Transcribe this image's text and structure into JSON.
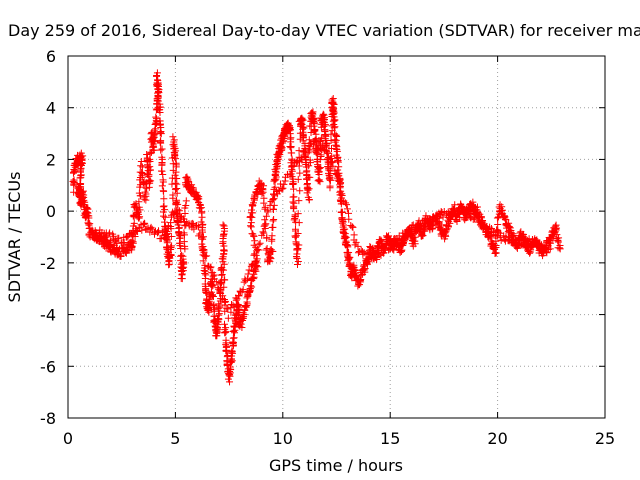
{
  "chart_data": {
    "type": "scatter",
    "title": "Day 259 of 2016, Sidereal Day-to-day VTEC variation (SDTVAR) for receiver ma",
    "xlabel": "GPS time / hours",
    "ylabel": "SDTVAR / TECUs",
    "xlim": [
      0,
      25
    ],
    "ylim": [
      -8,
      6
    ],
    "xticks": [
      0,
      5,
      10,
      15,
      20,
      25
    ],
    "yticks": [
      -8,
      -6,
      -4,
      -2,
      0,
      2,
      4,
      6
    ],
    "grid": true,
    "marker": "+",
    "color": "#ff0000",
    "series": [
      {
        "trace": [
          [
            0.25,
            0.8
          ],
          [
            0.3,
            1.8
          ],
          [
            0.45,
            2.0
          ],
          [
            0.65,
            2.1
          ],
          [
            0.6,
            1.4
          ],
          [
            0.55,
            0.6
          ],
          [
            0.5,
            0.9
          ],
          [
            0.6,
            0.3
          ],
          [
            0.7,
            0.6
          ],
          [
            0.8,
            -0.2
          ],
          [
            0.9,
            0.1
          ],
          [
            1.0,
            -0.8
          ],
          [
            1.2,
            -0.9
          ],
          [
            1.4,
            -1.0
          ],
          [
            1.6,
            -1.1
          ],
          [
            1.8,
            -1.3
          ],
          [
            2.0,
            -1.4
          ],
          [
            2.2,
            -1.5
          ],
          [
            2.5,
            -1.6
          ],
          [
            2.8,
            -1.4
          ],
          [
            3.0,
            -1.3
          ],
          [
            3.1,
            0.2
          ],
          [
            3.3,
            -0.3
          ],
          [
            3.4,
            1.8
          ],
          [
            3.6,
            0.5
          ],
          [
            3.7,
            2.2
          ],
          [
            3.8,
            1.0
          ],
          [
            3.9,
            3.0
          ],
          [
            4.0,
            2.5
          ],
          [
            4.1,
            3.5
          ],
          [
            4.2,
            4.6
          ],
          [
            4.15,
            5.2
          ],
          [
            4.25,
            4.0
          ],
          [
            4.3,
            3.0
          ],
          [
            4.4,
            1.5
          ],
          [
            4.5,
            -0.5
          ],
          [
            4.6,
            -1.2
          ],
          [
            4.7,
            -2.0
          ],
          [
            4.8,
            -1.5
          ],
          [
            4.9,
            2.8
          ],
          [
            5.0,
            2.0
          ],
          [
            5.05,
            0.5
          ],
          [
            5.1,
            -0.3
          ],
          [
            5.2,
            -1.0
          ],
          [
            5.3,
            -2.5
          ],
          [
            5.4,
            -1.8
          ],
          [
            5.5,
            1.2
          ],
          [
            5.6,
            1.0
          ],
          [
            5.8,
            0.8
          ],
          [
            6.0,
            0.6
          ],
          [
            6.2,
            0.0
          ],
          [
            6.3,
            -1.5
          ],
          [
            6.4,
            -3.0
          ],
          [
            6.5,
            -3.8
          ],
          [
            6.6,
            -3.5
          ],
          [
            6.7,
            -2.5
          ],
          [
            6.8,
            -4.0
          ],
          [
            6.9,
            -4.8
          ],
          [
            7.0,
            -4.2
          ],
          [
            7.1,
            -3.0
          ],
          [
            7.2,
            -2.0
          ],
          [
            7.25,
            -0.5
          ],
          [
            7.3,
            -4.5
          ],
          [
            7.4,
            -5.5
          ],
          [
            7.5,
            -6.5
          ],
          [
            7.6,
            -5.8
          ],
          [
            7.7,
            -5.0
          ],
          [
            7.8,
            -4.2
          ],
          [
            7.9,
            -3.5
          ],
          [
            8.0,
            -4.5
          ],
          [
            8.2,
            -4.0
          ],
          [
            8.4,
            -3.2
          ],
          [
            8.6,
            -2.5
          ],
          [
            8.8,
            -2.0
          ],
          [
            8.5,
            -0.3
          ],
          [
            8.7,
            0.5
          ],
          [
            8.9,
            1.0
          ],
          [
            9.1,
            0.8
          ],
          [
            9.3,
            -2.0
          ],
          [
            9.5,
            -1.5
          ],
          [
            9.6,
            1.0
          ],
          [
            9.7,
            1.8
          ],
          [
            9.8,
            2.2
          ],
          [
            9.9,
            2.5
          ],
          [
            10.0,
            2.8
          ],
          [
            10.1,
            3.0
          ],
          [
            10.2,
            3.2
          ],
          [
            10.3,
            3.3
          ],
          [
            10.4,
            2.0
          ],
          [
            10.5,
            0.5
          ],
          [
            10.6,
            -1.0
          ],
          [
            10.7,
            -2.0
          ],
          [
            10.8,
            3.4
          ],
          [
            10.9,
            3.5
          ],
          [
            11.0,
            2.5
          ],
          [
            11.1,
            1.5
          ],
          [
            11.2,
            0.5
          ],
          [
            11.3,
            3.6
          ],
          [
            11.4,
            3.7
          ],
          [
            11.5,
            3.0
          ],
          [
            11.6,
            2.0
          ],
          [
            11.7,
            1.2
          ],
          [
            11.8,
            3.5
          ],
          [
            11.9,
            3.6
          ],
          [
            12.0,
            2.8
          ],
          [
            12.1,
            2.0
          ],
          [
            12.2,
            1.0
          ],
          [
            12.3,
            4.3
          ],
          [
            12.35,
            4.0
          ],
          [
            12.4,
            3.5
          ],
          [
            12.5,
            2.5
          ],
          [
            12.6,
            1.5
          ],
          [
            12.7,
            0.5
          ],
          [
            12.8,
            -0.5
          ],
          [
            12.9,
            -1.0
          ],
          [
            13.0,
            -1.5
          ],
          [
            13.1,
            -2.0
          ],
          [
            13.2,
            -2.5
          ],
          [
            13.3,
            -2.2
          ],
          [
            13.5,
            -2.8
          ],
          [
            13.7,
            -2.4
          ],
          [
            13.9,
            -2.0
          ],
          [
            14.1,
            -1.5
          ],
          [
            14.3,
            -1.8
          ],
          [
            14.5,
            -1.2
          ],
          [
            14.7,
            -1.5
          ],
          [
            14.9,
            -1.0
          ],
          [
            15.1,
            -1.4
          ],
          [
            15.3,
            -1.2
          ],
          [
            15.5,
            -1.5
          ],
          [
            15.7,
            -1.0
          ],
          [
            15.9,
            -0.8
          ],
          [
            16.1,
            -1.2
          ],
          [
            16.3,
            -0.5
          ],
          [
            16.5,
            -0.9
          ],
          [
            16.7,
            -0.3
          ],
          [
            16.9,
            -0.7
          ],
          [
            17.1,
            -0.2
          ],
          [
            17.3,
            -0.5
          ],
          [
            17.5,
            -1.0
          ],
          [
            17.7,
            -0.4
          ],
          [
            17.9,
            0.0
          ],
          [
            18.1,
            -0.3
          ],
          [
            18.3,
            0.2
          ],
          [
            18.5,
            -0.2
          ],
          [
            18.7,
            0.1
          ],
          [
            18.9,
            0.2
          ],
          [
            19.1,
            -0.1
          ],
          [
            19.3,
            -0.5
          ],
          [
            19.5,
            -0.8
          ],
          [
            19.7,
            -1.2
          ],
          [
            19.9,
            -1.5
          ],
          [
            20.1,
            0.2
          ],
          [
            20.3,
            -0.2
          ],
          [
            20.5,
            -0.6
          ],
          [
            20.7,
            -1.0
          ],
          [
            20.9,
            -1.3
          ],
          [
            21.1,
            -0.9
          ],
          [
            21.3,
            -1.2
          ],
          [
            21.5,
            -1.5
          ],
          [
            21.7,
            -1.1
          ],
          [
            21.9,
            -1.4
          ],
          [
            22.1,
            -1.6
          ],
          [
            22.3,
            -1.3
          ],
          [
            22.5,
            -1.0
          ],
          [
            22.7,
            -0.6
          ],
          [
            22.9,
            -1.5
          ]
        ],
        "jitter": 0.35,
        "density": 14
      },
      {
        "trace": [
          [
            1.5,
            -0.8
          ],
          [
            2.0,
            -1.0
          ],
          [
            2.5,
            -1.2
          ],
          [
            3.0,
            -0.9
          ],
          [
            3.5,
            -0.6
          ],
          [
            4.0,
            -0.8
          ],
          [
            4.5,
            -1.0
          ],
          [
            5.0,
            0.0
          ],
          [
            5.5,
            -0.4
          ],
          [
            6.0,
            -0.6
          ],
          [
            6.5,
            -2.0
          ],
          [
            7.0,
            -3.0
          ],
          [
            7.5,
            -4.0
          ],
          [
            8.0,
            -3.2
          ],
          [
            8.5,
            -2.2
          ],
          [
            9.0,
            -1.0
          ],
          [
            9.5,
            0.5
          ],
          [
            10.0,
            1.0
          ],
          [
            10.5,
            1.8
          ],
          [
            11.0,
            2.2
          ],
          [
            11.5,
            2.6
          ],
          [
            12.0,
            2.4
          ],
          [
            12.5,
            1.5
          ],
          [
            13.0,
            0.0
          ],
          [
            13.5,
            -1.5
          ],
          [
            14.0,
            -1.8
          ],
          [
            14.5,
            -1.6
          ],
          [
            15.0,
            -1.3
          ],
          [
            15.5,
            -1.0
          ],
          [
            16.0,
            -0.7
          ],
          [
            16.5,
            -0.5
          ],
          [
            17.0,
            -0.3
          ],
          [
            17.5,
            -0.1
          ],
          [
            18.0,
            0.1
          ],
          [
            18.5,
            0.0
          ],
          [
            19.0,
            -0.3
          ],
          [
            19.5,
            -0.6
          ],
          [
            20.0,
            -0.9
          ],
          [
            20.5,
            -1.1
          ],
          [
            21.0,
            -1.3
          ],
          [
            21.5,
            -1.2
          ],
          [
            22.0,
            -1.4
          ],
          [
            22.5,
            -1.5
          ]
        ],
        "jitter": 0.3,
        "density": 10
      }
    ]
  }
}
